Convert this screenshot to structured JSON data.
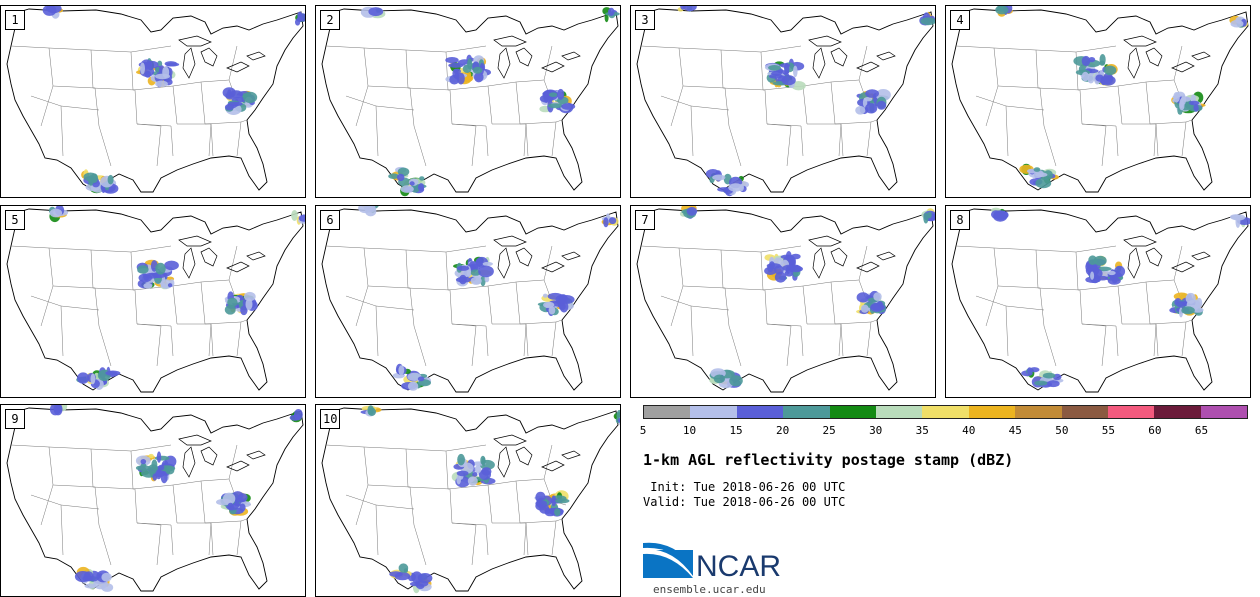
{
  "panels": [
    {
      "label": "1"
    },
    {
      "label": "2"
    },
    {
      "label": "3"
    },
    {
      "label": "4"
    },
    {
      "label": "5"
    },
    {
      "label": "6"
    },
    {
      "label": "7"
    },
    {
      "label": "8"
    },
    {
      "label": "9"
    },
    {
      "label": "10"
    }
  ],
  "colorbar": {
    "colors": [
      "#a0a0a0",
      "#b4bfe9",
      "#5a5fd8",
      "#4d9999",
      "#138a13",
      "#b9dcbb",
      "#f0df68",
      "#ecb420",
      "#c28b36",
      "#8b5a41",
      "#f35a7e",
      "#6b1b3a",
      "#ae4faf"
    ],
    "ticks": [
      "5",
      "10",
      "15",
      "20",
      "25",
      "30",
      "35",
      "40",
      "45",
      "50",
      "55",
      "60",
      "65"
    ]
  },
  "title": "1-km AGL reflectivity postage stamp (dBZ)",
  "init": " Init: Tue 2018-06-26 00 UTC",
  "valid": "Valid: Tue 2018-06-26 00 UTC",
  "logo": {
    "text": "NCAR",
    "website": "ensemble.ucar.edu"
  }
}
